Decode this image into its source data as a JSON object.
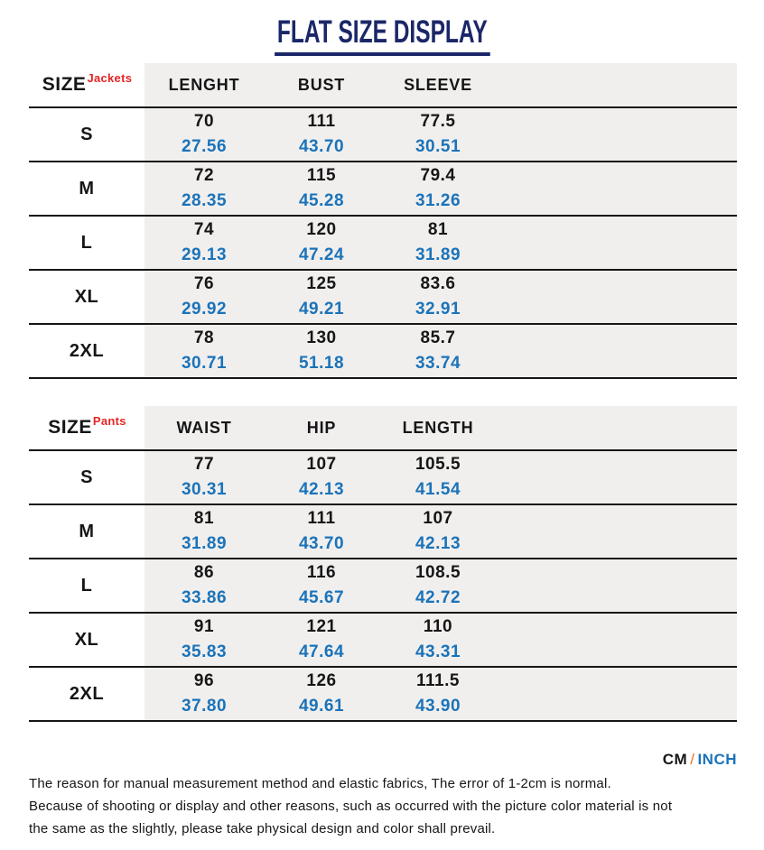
{
  "title": "FLAT SIZE DISPLAY",
  "tables": [
    {
      "size_label": "SIZE",
      "category": "Jackets",
      "columns": [
        "LENGHT",
        "BUST",
        "SLEEVE"
      ],
      "rows": [
        {
          "size": "S",
          "cm": [
            "70",
            "111",
            "77.5"
          ],
          "inch": [
            "27.56",
            "43.70",
            "30.51"
          ]
        },
        {
          "size": "M",
          "cm": [
            "72",
            "115",
            "79.4"
          ],
          "inch": [
            "28.35",
            "45.28",
            "31.26"
          ]
        },
        {
          "size": "L",
          "cm": [
            "74",
            "120",
            "81"
          ],
          "inch": [
            "29.13",
            "47.24",
            "31.89"
          ]
        },
        {
          "size": "XL",
          "cm": [
            "76",
            "125",
            "83.6"
          ],
          "inch": [
            "29.92",
            "49.21",
            "32.91"
          ]
        },
        {
          "size": "2XL",
          "cm": [
            "78",
            "130",
            "85.7"
          ],
          "inch": [
            "30.71",
            "51.18",
            "33.74"
          ]
        }
      ]
    },
    {
      "size_label": "SIZE",
      "category": "Pants",
      "columns": [
        "WAIST",
        "HIP",
        "LENGTH"
      ],
      "rows": [
        {
          "size": "S",
          "cm": [
            "77",
            "107",
            "105.5"
          ],
          "inch": [
            "30.31",
            "42.13",
            "41.54"
          ]
        },
        {
          "size": "M",
          "cm": [
            "81",
            "111",
            "107"
          ],
          "inch": [
            "31.89",
            "43.70",
            "42.13"
          ]
        },
        {
          "size": "L",
          "cm": [
            "86",
            "116",
            "108.5"
          ],
          "inch": [
            "33.86",
            "45.67",
            "42.72"
          ]
        },
        {
          "size": "XL",
          "cm": [
            "91",
            "121",
            "110"
          ],
          "inch": [
            "35.83",
            "47.64",
            "43.31"
          ]
        },
        {
          "size": "2XL",
          "cm": [
            "96",
            "126",
            "111.5"
          ],
          "inch": [
            "37.80",
            "49.61",
            "43.90"
          ]
        }
      ]
    }
  ],
  "units": {
    "cm": "CM",
    "separator": "/",
    "inch": "INCH"
  },
  "disclaimer": {
    "line1": "The reason for manual measurement method and elastic fabrics, The error of 1-2cm is normal.",
    "line2": "Because of shooting or display and other reasons, such as occurred with the picture color material is not",
    "line3": "the same as the slightly, please take physical design and color shall prevail."
  },
  "colors": {
    "title_navy": "#1b2768",
    "inch_blue": "#1b73b9",
    "category_red": "#e62525",
    "slash_orange": "#ed7125",
    "cell_gray": "#f0efee",
    "line_black": "#161616"
  }
}
